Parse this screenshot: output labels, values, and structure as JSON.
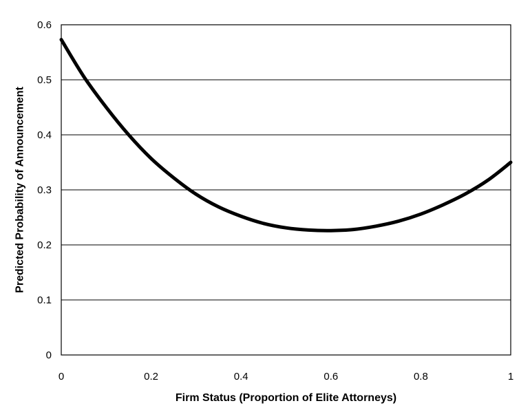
{
  "chart_data": {
    "type": "line",
    "title": "",
    "xlabel": "Firm Status (Proportion of Elite Attorneys)",
    "ylabel": "Predicted Probability of Announcement",
    "xlim": [
      0,
      1
    ],
    "ylim": [
      0,
      0.6
    ],
    "x_ticks": [
      "0",
      "0.2",
      "0.4",
      "0.6",
      "0.8",
      "1"
    ],
    "y_ticks": [
      "0",
      "0.1",
      "0.2",
      "0.3",
      "0.4",
      "0.5",
      "0.6"
    ],
    "grid": "horizontal",
    "legend": "none",
    "series": [
      {
        "x": [
          0,
          0.05,
          0.1,
          0.15,
          0.2,
          0.25,
          0.3,
          0.35,
          0.4,
          0.45,
          0.5,
          0.55,
          0.6,
          0.65,
          0.7,
          0.75,
          0.8,
          0.85,
          0.9,
          0.95,
          1
        ],
        "y": [
          0.573,
          0.506,
          0.45,
          0.4,
          0.357,
          0.322,
          0.292,
          0.269,
          0.252,
          0.239,
          0.231,
          0.227,
          0.226,
          0.228,
          0.234,
          0.243,
          0.256,
          0.273,
          0.293,
          0.318,
          0.35
        ]
      }
    ]
  }
}
